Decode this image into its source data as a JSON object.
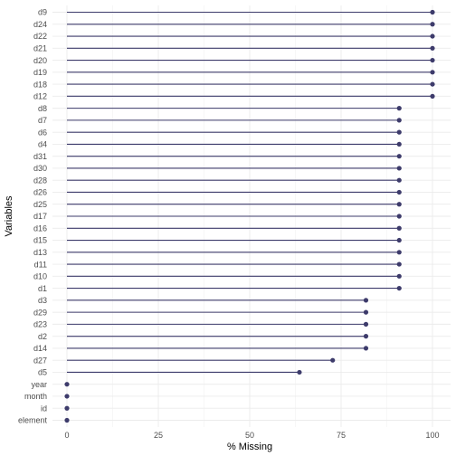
{
  "chart_data": {
    "type": "lollipop",
    "title": "",
    "xlabel": "% Missing",
    "ylabel": "Variables",
    "xlim": [
      0,
      100
    ],
    "xticks": [
      0,
      25,
      50,
      75,
      100
    ],
    "grid": true,
    "colors": {
      "segment": "#3d3b6b",
      "point": "#3d3b6b",
      "grid": "#ebebeb"
    },
    "categories": [
      "d9",
      "d24",
      "d22",
      "d21",
      "d20",
      "d19",
      "d18",
      "d12",
      "d8",
      "d7",
      "d6",
      "d4",
      "d31",
      "d30",
      "d28",
      "d26",
      "d25",
      "d17",
      "d16",
      "d15",
      "d13",
      "d11",
      "d10",
      "d1",
      "d3",
      "d29",
      "d23",
      "d2",
      "d14",
      "d27",
      "d5",
      "year",
      "month",
      "id",
      "element"
    ],
    "values": [
      100,
      100,
      100,
      100,
      100,
      100,
      100,
      100,
      90.9,
      90.9,
      90.9,
      90.9,
      90.9,
      90.9,
      90.9,
      90.9,
      90.9,
      90.9,
      90.9,
      90.9,
      90.9,
      90.9,
      90.9,
      90.9,
      81.8,
      81.8,
      81.8,
      81.8,
      81.8,
      72.7,
      63.6,
      0,
      0,
      0,
      0
    ]
  }
}
